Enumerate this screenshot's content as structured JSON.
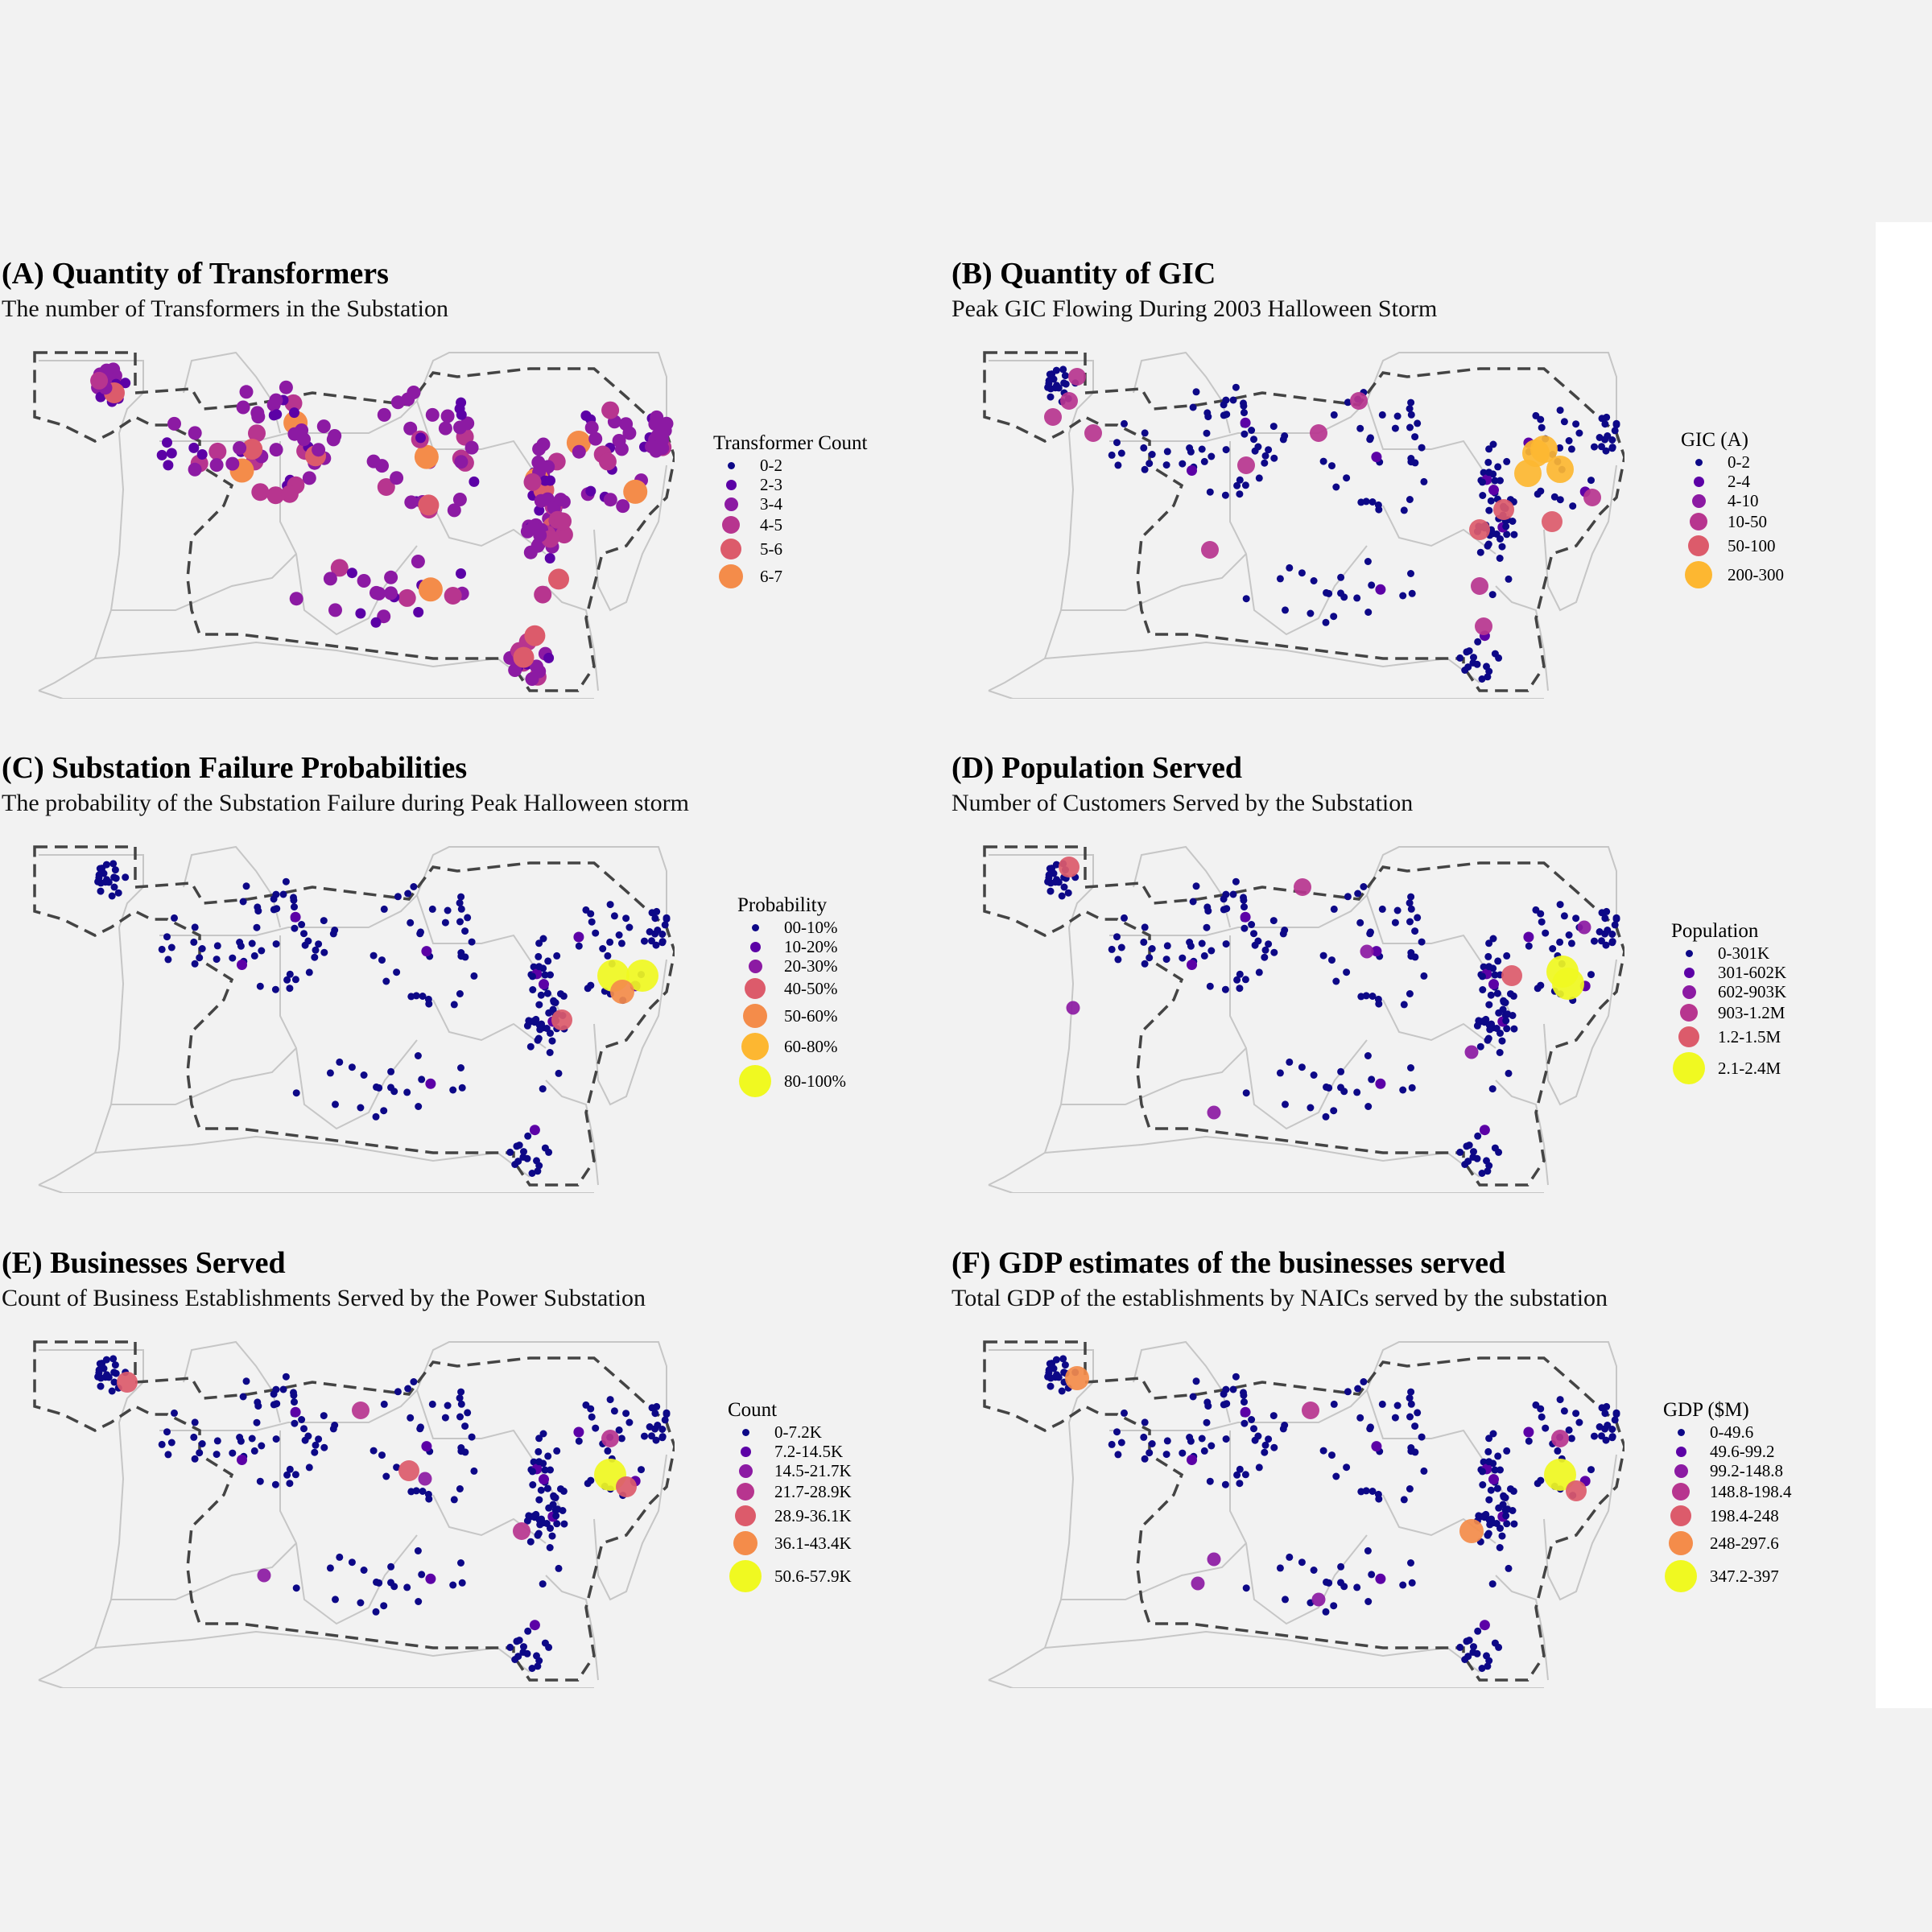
{
  "colors": {
    "background": "#f2f2f2",
    "state_border": "#c6c6c6",
    "region_border": "#444444",
    "scale": [
      "#0d0887",
      "#5c01a6",
      "#8c1aa3",
      "#b7358f",
      "#dc5b6b",
      "#f48c4a",
      "#fdb731",
      "#f0f921"
    ]
  },
  "panels": [
    {
      "id": "A",
      "title": "(A) Quantity of Transformers",
      "subtitle": "The number of Transformers in the Substation",
      "legend": {
        "title": "Transformer Count",
        "items": [
          {
            "label": "0-2",
            "color": "#0d0887",
            "size": 1
          },
          {
            "label": "2-3",
            "color": "#5c01a6",
            "size": 2
          },
          {
            "label": "3-4",
            "color": "#8c1aa3",
            "size": 3
          },
          {
            "label": "4-5",
            "color": "#b7358f",
            "size": 4
          },
          {
            "label": "5-6",
            "color": "#dc5b6b",
            "size": 5
          },
          {
            "label": "6-7",
            "color": "#f48c4a",
            "size": 6
          }
        ]
      }
    },
    {
      "id": "B",
      "title": "(B) Quantity of GIC",
      "subtitle": "Peak GIC Flowing During 2003 Halloween Storm",
      "legend": {
        "title": "GIC (A)",
        "items": [
          {
            "label": "0-2",
            "color": "#0d0887",
            "size": 1
          },
          {
            "label": "2-4",
            "color": "#5c01a6",
            "size": 2
          },
          {
            "label": "4-10",
            "color": "#8c1aa3",
            "size": 3
          },
          {
            "label": "10-50",
            "color": "#b7358f",
            "size": 4
          },
          {
            "label": "50-100",
            "color": "#dc5b6b",
            "size": 5
          },
          {
            "label": "200-300",
            "color": "#fdb731",
            "size": 7
          }
        ]
      }
    },
    {
      "id": "C",
      "title": "(C) Substation Failure Probabilities",
      "subtitle": "The probability of the Substation Failure during Peak Halloween storm",
      "legend": {
        "title": "Probability",
        "items": [
          {
            "label": "00-10%",
            "color": "#0d0887",
            "size": 1
          },
          {
            "label": "10-20%",
            "color": "#5c01a6",
            "size": 2
          },
          {
            "label": "20-30%",
            "color": "#8c1aa3",
            "size": 3
          },
          {
            "label": "40-50%",
            "color": "#dc5b6b",
            "size": 5
          },
          {
            "label": "50-60%",
            "color": "#f48c4a",
            "size": 6
          },
          {
            "label": "60-80%",
            "color": "#fdb731",
            "size": 7
          },
          {
            "label": "80-100%",
            "color": "#f0f921",
            "size": 8
          }
        ]
      }
    },
    {
      "id": "D",
      "title": "(D) Population Served",
      "subtitle": "Number of Customers Served by the Substation",
      "legend": {
        "title": "Population",
        "items": [
          {
            "label": "0-301K",
            "color": "#0d0887",
            "size": 1
          },
          {
            "label": "301-602K",
            "color": "#5c01a6",
            "size": 2
          },
          {
            "label": "602-903K",
            "color": "#8c1aa3",
            "size": 3
          },
          {
            "label": "903-1.2M",
            "color": "#b7358f",
            "size": 4
          },
          {
            "label": "1.2-1.5M",
            "color": "#dc5b6b",
            "size": 5
          },
          {
            "label": "2.1-2.4M",
            "color": "#f0f921",
            "size": 8
          }
        ]
      }
    },
    {
      "id": "E",
      "title": "(E) Businesses Served",
      "subtitle": "Count of Business Establishments Served by the Power Substation",
      "legend": {
        "title": "Count",
        "items": [
          {
            "label": "0-7.2K",
            "color": "#0d0887",
            "size": 1
          },
          {
            "label": "7.2-14.5K",
            "color": "#5c01a6",
            "size": 2
          },
          {
            "label": "14.5-21.7K",
            "color": "#8c1aa3",
            "size": 3
          },
          {
            "label": "21.7-28.9K",
            "color": "#b7358f",
            "size": 4
          },
          {
            "label": "28.9-36.1K",
            "color": "#dc5b6b",
            "size": 5
          },
          {
            "label": "36.1-43.4K",
            "color": "#f48c4a",
            "size": 6
          },
          {
            "label": "50.6-57.9K",
            "color": "#f0f921",
            "size": 8
          }
        ]
      }
    },
    {
      "id": "F",
      "title": "(F) GDP estimates of the businesses served",
      "subtitle": "Total GDP of the establishments by NAICs served by the substation",
      "legend": {
        "title": "GDP ($M)",
        "items": [
          {
            "label": "0-49.6",
            "color": "#0d0887",
            "size": 1
          },
          {
            "label": "49.6-99.2",
            "color": "#5c01a6",
            "size": 2
          },
          {
            "label": "99.2-148.8",
            "color": "#8c1aa3",
            "size": 3
          },
          {
            "label": "148.8-198.4",
            "color": "#b7358f",
            "size": 4
          },
          {
            "label": "198.4-248",
            "color": "#dc5b6b",
            "size": 5
          },
          {
            "label": "248-297.6",
            "color": "#f48c4a",
            "size": 6
          },
          {
            "label": "347.2-397",
            "color": "#f0f921",
            "size": 8
          }
        ]
      }
    }
  ]
}
